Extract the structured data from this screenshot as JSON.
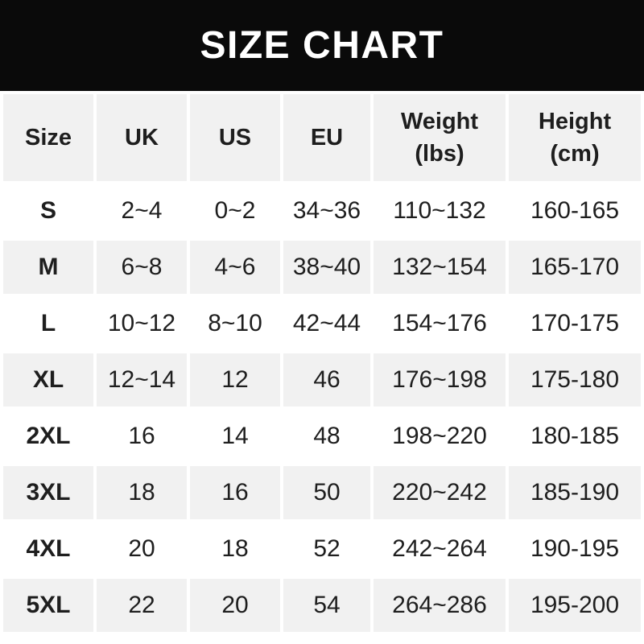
{
  "title_bar": {
    "title": "SIZE CHART"
  },
  "colors": {
    "title_bar_bg": "#0a0a0a",
    "title_text": "#ffffff",
    "cell_alt_bg": "#f1f1f1",
    "cell_bg": "#ffffff",
    "text": "#1e1e1e"
  },
  "table": {
    "columns": [
      {
        "label": "Size",
        "sublabel": ""
      },
      {
        "label": "UK",
        "sublabel": ""
      },
      {
        "label": "US",
        "sublabel": ""
      },
      {
        "label": "EU",
        "sublabel": ""
      },
      {
        "label": "Weight",
        "sublabel": "(lbs)"
      },
      {
        "label": "Height",
        "sublabel": "(cm)"
      }
    ],
    "rows": [
      {
        "size": "S",
        "uk": "2~4",
        "us": "0~2",
        "eu": "34~36",
        "weight": "110~132",
        "height": "160-165"
      },
      {
        "size": "M",
        "uk": "6~8",
        "us": "4~6",
        "eu": "38~40",
        "weight": "132~154",
        "height": "165-170"
      },
      {
        "size": "L",
        "uk": "10~12",
        "us": "8~10",
        "eu": "42~44",
        "weight": "154~176",
        "height": "170-175"
      },
      {
        "size": "XL",
        "uk": "12~14",
        "us": "12",
        "eu": "46",
        "weight": "176~198",
        "height": "175-180"
      },
      {
        "size": "2XL",
        "uk": "16",
        "us": "14",
        "eu": "48",
        "weight": "198~220",
        "height": "180-185"
      },
      {
        "size": "3XL",
        "uk": "18",
        "us": "16",
        "eu": "50",
        "weight": "220~242",
        "height": "185-190"
      },
      {
        "size": "4XL",
        "uk": "20",
        "us": "18",
        "eu": "52",
        "weight": "242~264",
        "height": "190-195"
      },
      {
        "size": "5XL",
        "uk": "22",
        "us": "20",
        "eu": "54",
        "weight": "264~286",
        "height": "195-200"
      }
    ]
  }
}
